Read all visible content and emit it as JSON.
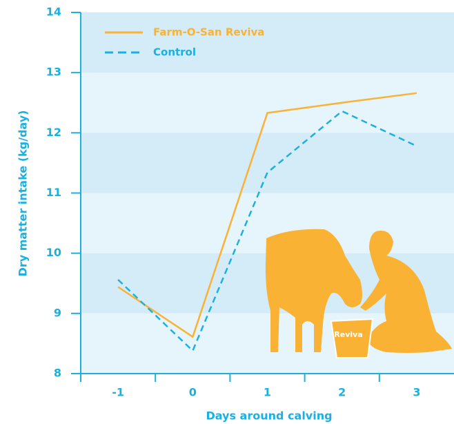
{
  "chart_data": {
    "type": "line",
    "x_label": "Days around calving",
    "y_label": "Dry matter intake (kg/day)",
    "categories": [
      "-1",
      "0",
      "1",
      "2",
      "3"
    ],
    "series": [
      {
        "name": "Farm-O-San Reviva",
        "color": "#f9b233",
        "dash": false,
        "values": [
          9.44,
          8.61,
          12.33,
          12.5,
          12.66
        ]
      },
      {
        "name": "Control",
        "color": "#1ab0e0",
        "dash": true,
        "values": [
          9.56,
          8.38,
          11.34,
          12.36,
          11.78
        ]
      }
    ],
    "ylim": [
      8,
      14
    ],
    "yticks": [
      8,
      9,
      10,
      11,
      12,
      13,
      14
    ],
    "legend": "upper-left",
    "illustration_label": "Reviva"
  }
}
